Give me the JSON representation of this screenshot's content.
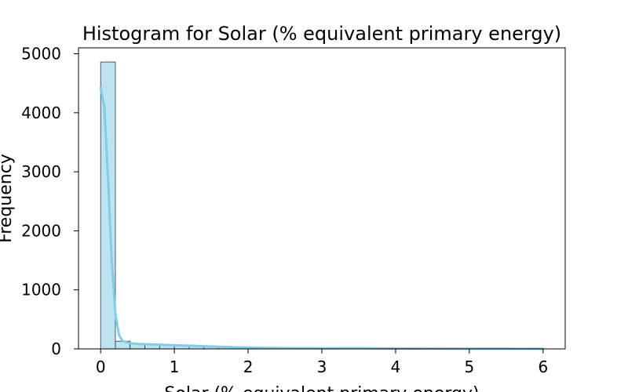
{
  "chart_data": {
    "type": "bar",
    "title": "Histogram for Solar (% equivalent primary energy)",
    "xlabel": "Solar (% equivalent primary energy)",
    "ylabel": "Frequency",
    "xlim": [
      -0.3,
      6.3
    ],
    "ylim": [
      0,
      5100
    ],
    "xticks": [
      0,
      1,
      2,
      3,
      4,
      5,
      6
    ],
    "yticks": [
      0,
      1000,
      2000,
      3000,
      4000,
      5000
    ],
    "bin_edges": [
      0,
      0.2,
      0.4,
      0.6,
      0.8,
      1.0,
      1.2,
      1.4,
      1.6,
      1.8,
      2.0,
      2.2,
      2.4,
      2.6,
      2.8,
      3.0,
      3.2,
      3.4,
      3.6,
      3.8,
      4.0,
      4.2,
      4.4,
      4.6,
      4.8,
      5.0,
      5.2,
      5.4,
      5.6,
      5.8,
      6.0
    ],
    "counts": [
      4860,
      130,
      90,
      75,
      70,
      55,
      50,
      38,
      30,
      22,
      15,
      12,
      10,
      8,
      7,
      6,
      6,
      7,
      5,
      4,
      4,
      3,
      3,
      2,
      2,
      2,
      2,
      1,
      1,
      1
    ],
    "kde": {
      "x": [
        0,
        0.05,
        0.1,
        0.15,
        0.2,
        0.25,
        0.3,
        0.4,
        0.5,
        0.6,
        0.8,
        1.0,
        1.2,
        1.4,
        1.6,
        1.8,
        2.0,
        2.5,
        3.0,
        3.5,
        4.0,
        4.5,
        5.0,
        5.5,
        6.0
      ],
      "y": [
        4420,
        4100,
        2900,
        1500,
        600,
        230,
        130,
        95,
        85,
        80,
        72,
        62,
        55,
        45,
        36,
        28,
        22,
        14,
        10,
        12,
        7,
        5,
        4,
        3,
        2
      ]
    },
    "bar_fill": "#bde3f2",
    "bar_stroke": "#333333",
    "kde_color": "#7fcde6",
    "grid": false,
    "legend": "none"
  }
}
